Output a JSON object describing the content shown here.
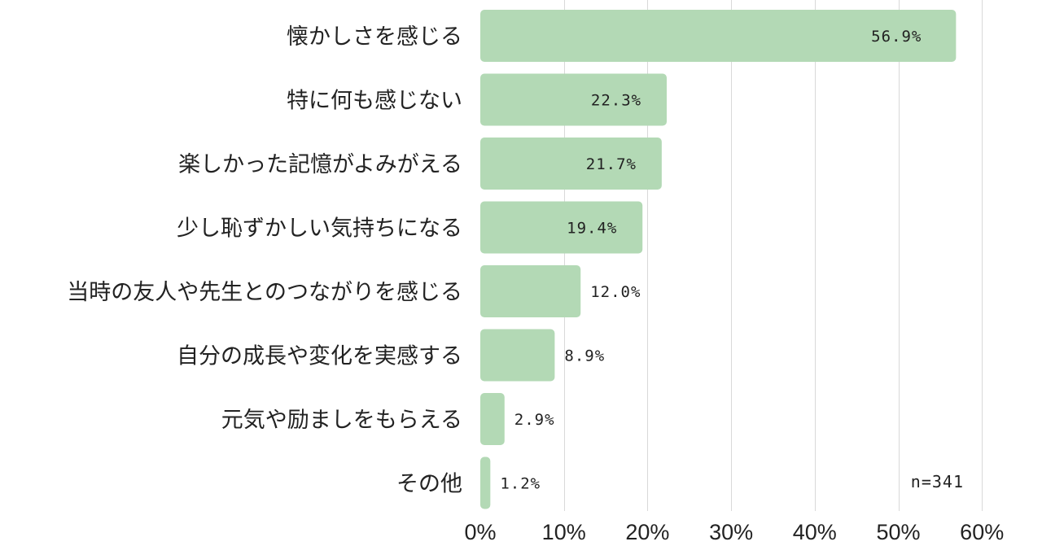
{
  "chart_data": {
    "type": "bar",
    "orientation": "horizontal",
    "categories": [
      "懐かしさを感じる",
      "特に何も感じない",
      "楽しかった記憶がよみがえる",
      "少し恥ずかしい気持ちになる",
      "当時の友人や先生とのつながりを感じる",
      "自分の成長や変化を実感する",
      "元気や励ましをもらえる",
      "その他"
    ],
    "values": [
      56.9,
      22.3,
      21.7,
      19.4,
      12.0,
      8.9,
      2.9,
      1.2
    ],
    "value_labels": [
      "56.9%",
      "22.3%",
      "21.7%",
      "19.4%",
      "12.0%",
      "8.9%",
      "2.9%",
      "1.2%"
    ],
    "xlim": [
      0,
      60
    ],
    "x_ticks": [
      0,
      10,
      20,
      30,
      40,
      50,
      60
    ],
    "x_tick_labels": [
      "0%",
      "10%",
      "20%",
      "30%",
      "40%",
      "50%",
      "60%"
    ],
    "grid": true,
    "bar_color": "#b3d9b5",
    "grid_color": "#d9d9d9",
    "annotation": "n=341"
  }
}
